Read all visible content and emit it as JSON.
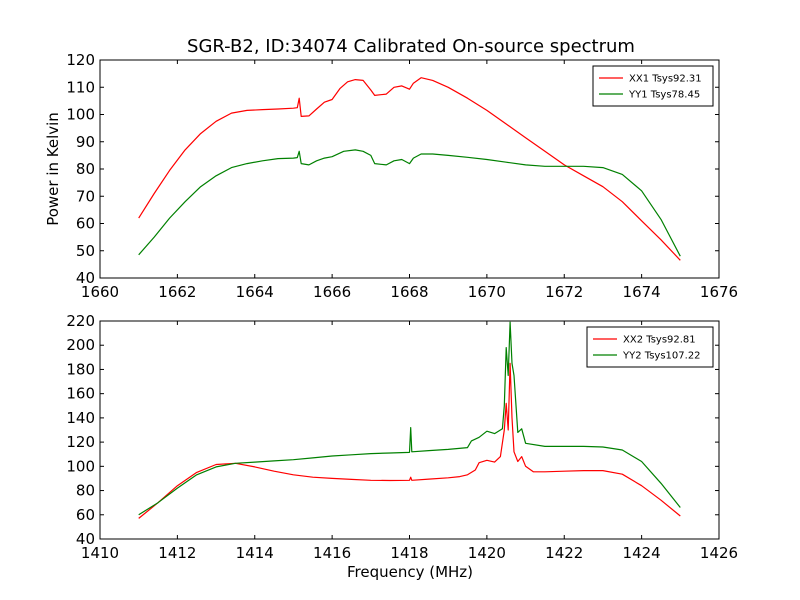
{
  "chart_data": [
    {
      "type": "line",
      "title": "SGR-B2, ID:34074 Calibrated On-source spectrum",
      "xlabel": "",
      "ylabel": "Power in Kelvin",
      "xlim": [
        1660,
        1676
      ],
      "ylim": [
        40,
        120
      ],
      "xticks": [
        1660,
        1662,
        1664,
        1666,
        1668,
        1670,
        1672,
        1674,
        1676
      ],
      "yticks": [
        40,
        50,
        60,
        70,
        80,
        90,
        100,
        110,
        120
      ],
      "grid": false,
      "legend_position": "top-right",
      "series": [
        {
          "name": "XX1 Tsys92.31",
          "color": "#ff0000",
          "x": [
            1661.0,
            1661.4,
            1661.8,
            1662.2,
            1662.6,
            1663.0,
            1663.4,
            1663.8,
            1664.2,
            1664.6,
            1665.0,
            1665.1,
            1665.15,
            1665.2,
            1665.4,
            1665.6,
            1665.8,
            1666.0,
            1666.2,
            1666.4,
            1666.6,
            1666.8,
            1667.0,
            1667.1,
            1667.4,
            1667.6,
            1667.8,
            1668.0,
            1668.1,
            1668.3,
            1668.6,
            1669.0,
            1669.5,
            1670.0,
            1670.5,
            1671.0,
            1671.5,
            1672.0,
            1672.5,
            1673.0,
            1673.5,
            1674.0,
            1674.5,
            1675.0
          ],
          "y": [
            62,
            71,
            79.5,
            87,
            93,
            97.5,
            100.5,
            101.5,
            101.8,
            102,
            102.3,
            102.5,
            106,
            99.3,
            99.5,
            102,
            104.5,
            105.5,
            109.5,
            112,
            112.8,
            112.5,
            109,
            107,
            107.5,
            110,
            110.5,
            109.3,
            111.5,
            113.5,
            112.5,
            110,
            106,
            101.5,
            96.5,
            91.5,
            86.5,
            81.5,
            77.5,
            73.5,
            68,
            61,
            54,
            46.5
          ]
        },
        {
          "name": "YY1 Tsys78.45",
          "color": "#008000",
          "x": [
            1661.0,
            1661.4,
            1661.8,
            1662.2,
            1662.6,
            1663.0,
            1663.4,
            1663.8,
            1664.2,
            1664.6,
            1665.0,
            1665.1,
            1665.15,
            1665.2,
            1665.4,
            1665.6,
            1665.8,
            1666.0,
            1666.3,
            1666.6,
            1666.8,
            1667.0,
            1667.1,
            1667.4,
            1667.6,
            1667.8,
            1668.0,
            1668.1,
            1668.3,
            1668.6,
            1669.0,
            1669.5,
            1670.0,
            1670.5,
            1671.0,
            1671.5,
            1672.0,
            1672.5,
            1673.0,
            1673.5,
            1674.0,
            1674.5,
            1675.0
          ],
          "y": [
            48.5,
            55,
            62,
            68,
            73.5,
            77.5,
            80.5,
            82,
            83,
            83.8,
            84,
            84.2,
            86.5,
            82,
            81.5,
            83,
            84,
            84.5,
            86.5,
            87,
            86.5,
            85,
            82,
            81.5,
            83,
            83.5,
            82,
            84,
            85.5,
            85.5,
            85,
            84.3,
            83.5,
            82.5,
            81.5,
            81,
            81,
            81,
            80.5,
            78,
            72,
            61.5,
            48
          ]
        }
      ]
    },
    {
      "type": "line",
      "title": "",
      "xlabel": "Frequency (MHz)",
      "ylabel": "",
      "xlim": [
        1410,
        1426
      ],
      "ylim": [
        40,
        220
      ],
      "xticks": [
        1410,
        1412,
        1414,
        1416,
        1418,
        1420,
        1422,
        1424,
        1426
      ],
      "yticks": [
        40,
        60,
        80,
        100,
        120,
        140,
        160,
        180,
        200,
        220
      ],
      "grid": false,
      "legend_position": "top-right",
      "series": [
        {
          "name": "XX2 Tsys92.81",
          "color": "#ff0000",
          "x": [
            1411.0,
            1411.5,
            1412.0,
            1412.5,
            1413.0,
            1413.5,
            1414.0,
            1414.5,
            1415.0,
            1415.5,
            1416.0,
            1416.5,
            1417.0,
            1417.5,
            1418.0,
            1418.03,
            1418.06,
            1418.5,
            1419.0,
            1419.3,
            1419.5,
            1419.7,
            1419.8,
            1420.0,
            1420.2,
            1420.35,
            1420.45,
            1420.5,
            1420.55,
            1420.6,
            1420.65,
            1420.7,
            1420.8,
            1420.9,
            1421.0,
            1421.2,
            1421.5,
            1422.0,
            1422.5,
            1423.0,
            1423.5,
            1424.0,
            1424.5,
            1425.0
          ],
          "y": [
            57,
            70,
            84,
            95,
            101.5,
            102.5,
            99.5,
            96,
            93,
            91,
            90,
            89.2,
            88.5,
            88.3,
            88.5,
            91,
            88.5,
            89.5,
            90.5,
            91.5,
            93,
            97,
            103,
            105,
            103.5,
            108,
            130,
            152,
            130,
            185,
            140,
            112,
            104,
            108,
            100,
            95.5,
            95.5,
            96,
            96.5,
            96.5,
            93.5,
            84,
            72,
            59
          ]
        },
        {
          "name": "YY2 Tsys107.22",
          "color": "#008000",
          "x": [
            1411.0,
            1411.5,
            1412.0,
            1412.5,
            1413.0,
            1413.5,
            1414.0,
            1414.5,
            1415.0,
            1415.5,
            1416.0,
            1416.5,
            1417.0,
            1417.5,
            1418.0,
            1418.03,
            1418.06,
            1418.5,
            1419.0,
            1419.5,
            1419.6,
            1419.8,
            1420.0,
            1420.2,
            1420.4,
            1420.45,
            1420.5,
            1420.55,
            1420.6,
            1420.65,
            1420.7,
            1420.8,
            1420.9,
            1421.0,
            1421.5,
            1422.0,
            1422.5,
            1423.0,
            1423.5,
            1424.0,
            1424.5,
            1425.0
          ],
          "y": [
            60,
            70,
            82,
            93,
            99.5,
            102.5,
            103.5,
            104.5,
            105.5,
            107,
            108.5,
            109.5,
            110.5,
            111,
            111.5,
            132,
            112,
            113,
            114,
            115.5,
            121,
            124,
            129,
            127,
            131,
            150,
            198,
            175,
            219,
            185,
            175,
            128,
            131,
            119,
            116.5,
            116.5,
            116.5,
            116,
            113.5,
            104,
            86,
            66
          ]
        }
      ]
    }
  ]
}
